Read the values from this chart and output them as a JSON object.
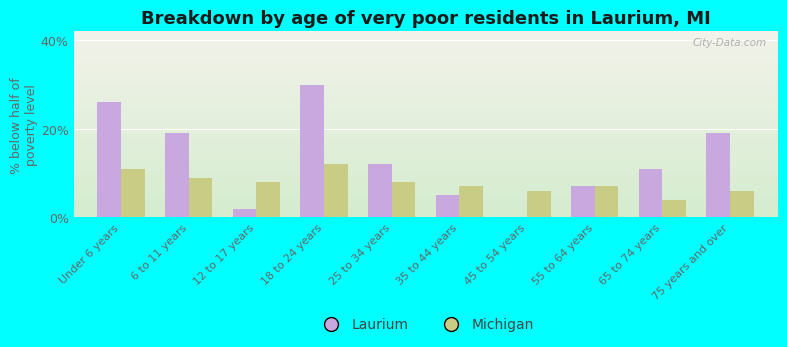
{
  "title": "Breakdown by age of very poor residents in Laurium, MI",
  "ylabel": "% below half of\npoverty level",
  "categories": [
    "Under 6 years",
    "6 to 11 years",
    "12 to 17 years",
    "18 to 24 years",
    "25 to 34 years",
    "35 to 44 years",
    "45 to 54 years",
    "55 to 64 years",
    "65 to 74 years",
    "75 years and over"
  ],
  "laurium_values": [
    26,
    19,
    2,
    30,
    12,
    5,
    0,
    7,
    11,
    19
  ],
  "michigan_values": [
    11,
    9,
    8,
    12,
    8,
    7,
    6,
    7,
    4,
    6
  ],
  "laurium_color": "#c9a8e0",
  "michigan_color": "#c8cc84",
  "bar_width": 0.35,
  "ylim": [
    0,
    42
  ],
  "yticks": [
    0,
    20,
    40
  ],
  "ytick_labels": [
    "0%",
    "20%",
    "40%"
  ],
  "background_color": "#00ffff",
  "plot_bg_top": "#f2f2ea",
  "plot_bg_bottom": "#d4ecce",
  "title_fontsize": 13,
  "axis_label_fontsize": 9,
  "tick_label_fontsize": 8,
  "legend_fontsize": 10,
  "label_color": "#666666",
  "watermark": "City-Data.com"
}
